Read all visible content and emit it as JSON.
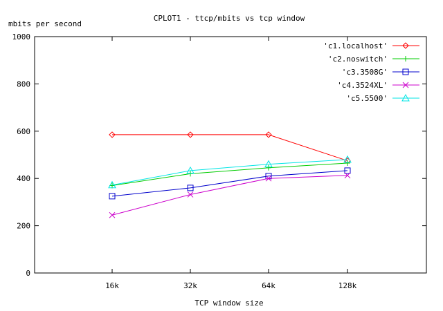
{
  "chart_data": {
    "type": "line",
    "title": "CPLOT1 - ttcp/mbits vs tcp window",
    "xlabel": "TCP window size",
    "ylabel": "mbits per second",
    "categories": [
      "16k",
      "32k",
      "64k",
      "128k"
    ],
    "ylim": [
      0,
      1000
    ],
    "yticks": [
      0,
      200,
      400,
      600,
      800,
      1000
    ],
    "grid": false,
    "legend_position": "top-right",
    "series": [
      {
        "name": "'c1.localhost'",
        "color": "#ff0000",
        "marker": "diamond",
        "values": [
          585,
          585,
          585,
          475
        ]
      },
      {
        "name": "'c2.noswitch'",
        "color": "#00cc00",
        "marker": "plus",
        "values": [
          370,
          420,
          445,
          465
        ]
      },
      {
        "name": "'c3.3508G'",
        "color": "#0000cc",
        "marker": "square",
        "values": [
          325,
          360,
          410,
          433
        ]
      },
      {
        "name": "'c4.3524XL'",
        "color": "#cc00cc",
        "marker": "cross",
        "values": [
          245,
          332,
          400,
          413
        ]
      },
      {
        "name": "'c5.5500'",
        "color": "#00e5e5",
        "marker": "triangle",
        "values": [
          372,
          433,
          460,
          480
        ]
      }
    ]
  }
}
